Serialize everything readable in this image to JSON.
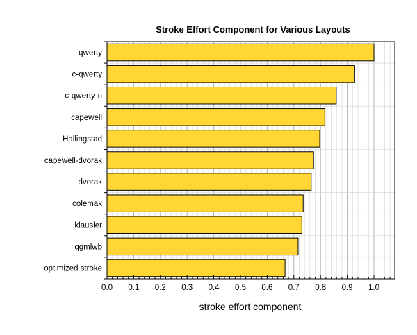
{
  "chart_data": {
    "type": "bar",
    "orientation": "horizontal",
    "title": "Stroke Effort Component for Various Layouts",
    "xlabel": "stroke effort component",
    "ylabel": "",
    "categories": [
      "qwerty",
      "c-qwerty",
      "c-qwerty-n",
      "capewell",
      "Hallingstad",
      "capewell-dvorak",
      "dvorak",
      "colemak",
      "klausler",
      "qgmlwb",
      "optimized stroke"
    ],
    "values": [
      1.0,
      0.928,
      0.859,
      0.816,
      0.797,
      0.774,
      0.765,
      0.735,
      0.73,
      0.716,
      0.667
    ],
    "highlight_category": "optimized stroke",
    "xlim": [
      0.0,
      1.08
    ],
    "xticks": [
      "0.0",
      "0.1",
      "0.2",
      "0.3",
      "0.4",
      "0.5",
      "0.6",
      "0.7",
      "0.8",
      "0.9",
      "1.0"
    ],
    "grid": true,
    "colors": {
      "bar_fill": "#FFD633",
      "bar_stroke": "#000000",
      "highlight_label": "#E8231F",
      "grid_minor": "#d9d9d9",
      "grid_major": "#b0b0b0"
    }
  }
}
